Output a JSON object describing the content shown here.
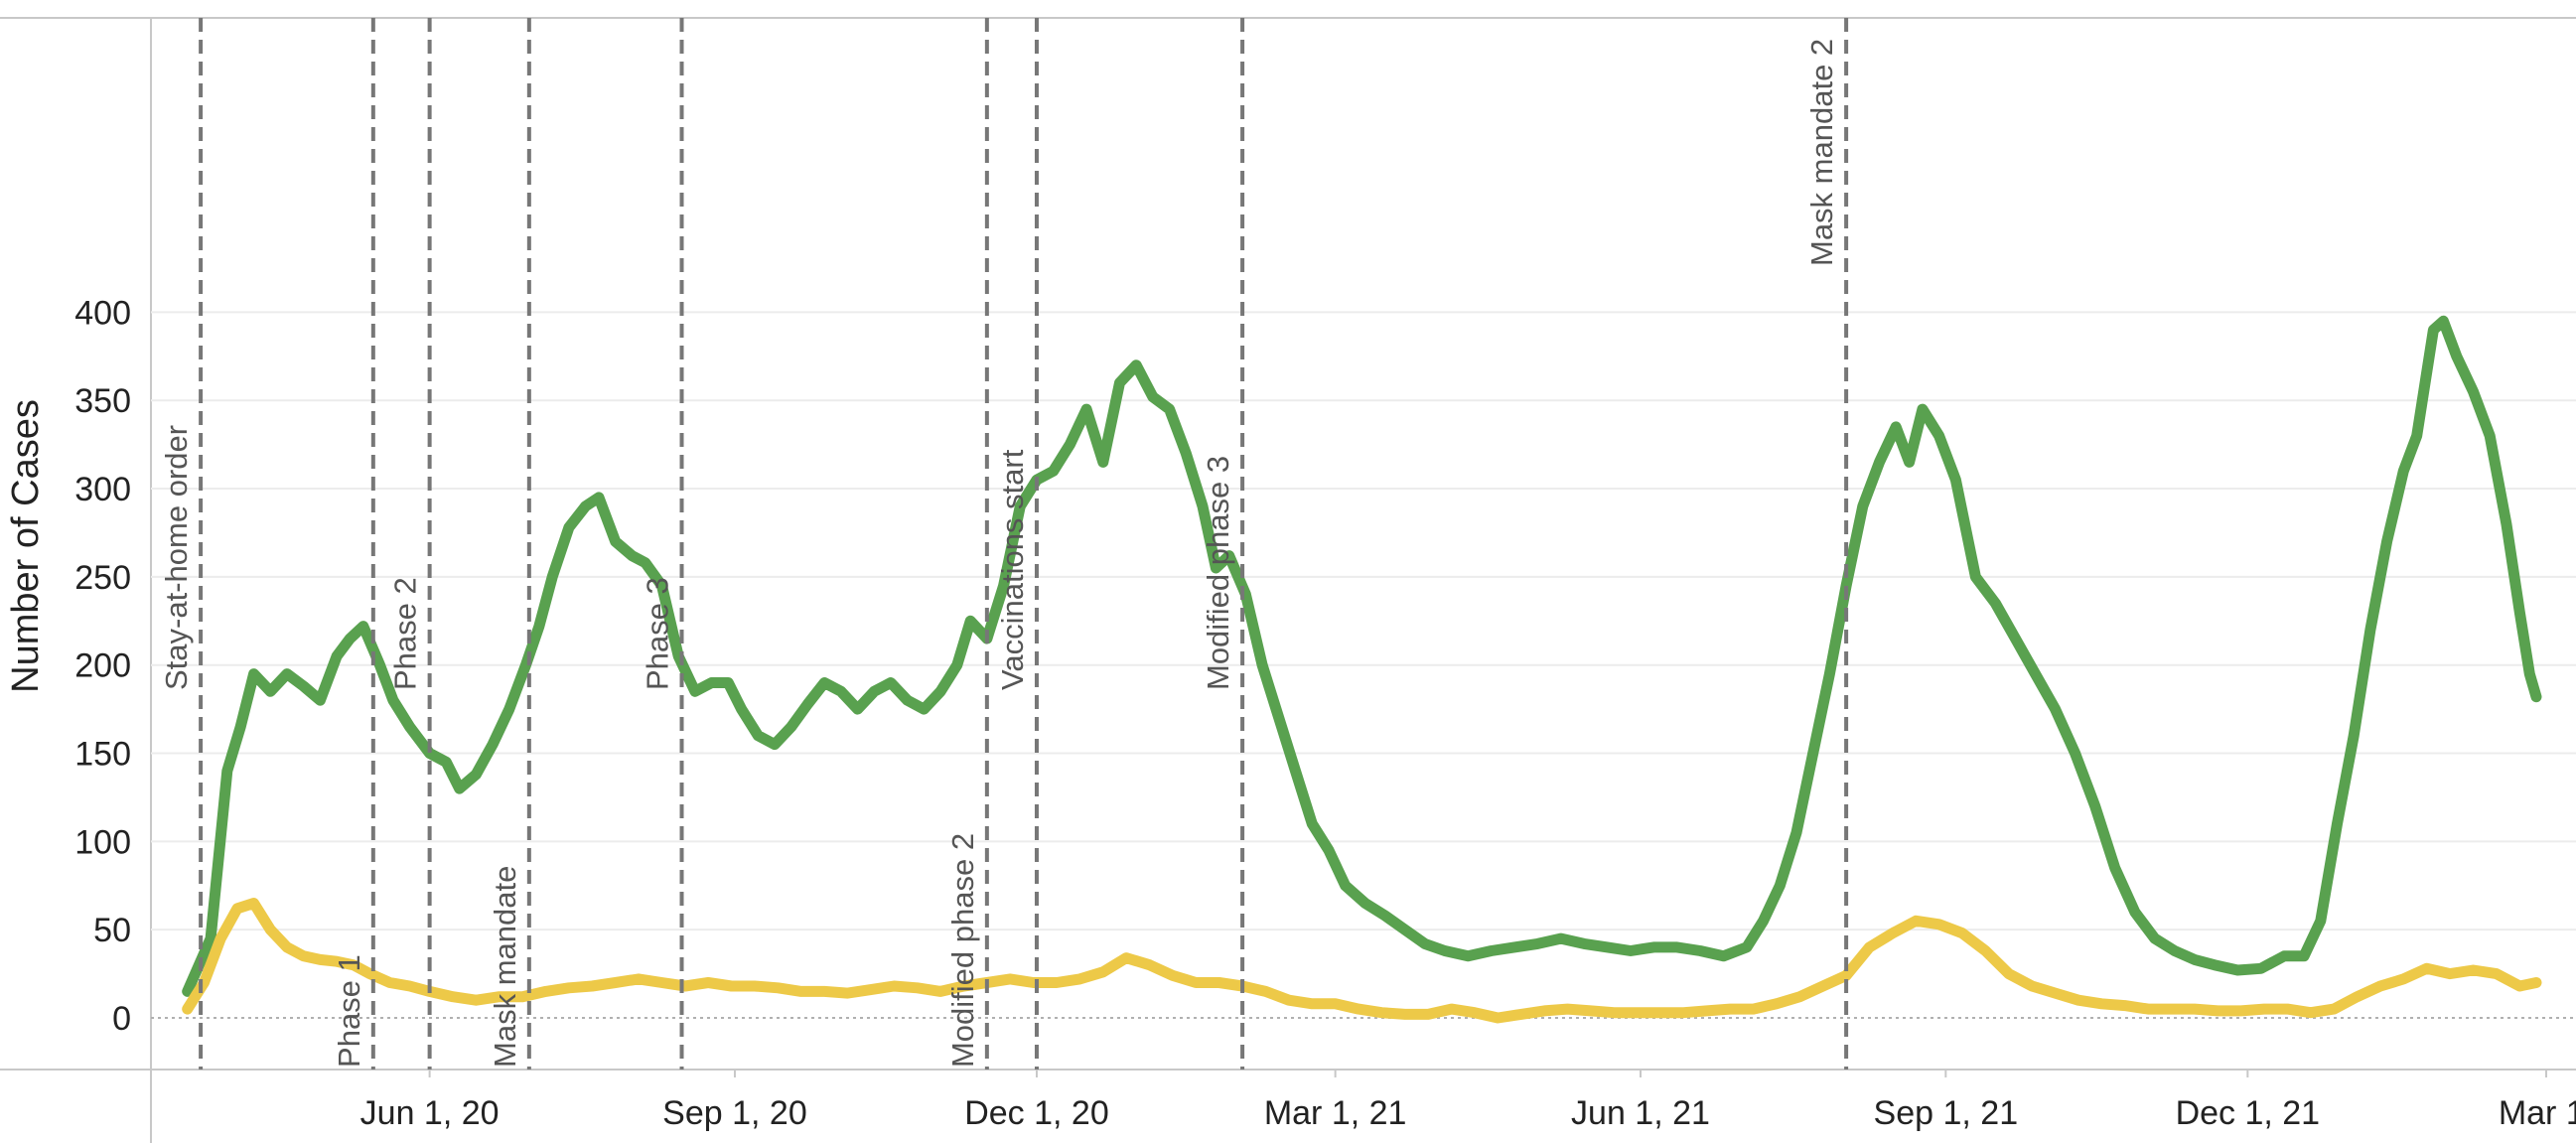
{
  "chart_data": {
    "type": "line",
    "title": "",
    "xlabel": "",
    "ylabel": "Number of Cases",
    "ylim": [
      -50,
      420
    ],
    "xlim": [
      "2020-03-09",
      "2022-03-01"
    ],
    "y_ticks": [
      0,
      50,
      100,
      150,
      200,
      250,
      300,
      350,
      400
    ],
    "x_ticks": [
      {
        "date": "2020-06-01",
        "label": "Jun 1, 20"
      },
      {
        "date": "2020-09-01",
        "label": "Sep 1, 20"
      },
      {
        "date": "2020-12-01",
        "label": "Dec 1, 20"
      },
      {
        "date": "2021-03-01",
        "label": "Mar 1, 21"
      },
      {
        "date": "2021-06-01",
        "label": "Jun 1, 21"
      },
      {
        "date": "2021-09-01",
        "label": "Sep 1, 21"
      },
      {
        "date": "2021-12-01",
        "label": "Dec 1, 21"
      },
      {
        "date": "2022-03-01",
        "label": "Mar 1,"
      }
    ],
    "grid": true,
    "zero_line": "dotted",
    "colors": {
      "series_1": "#59a14f",
      "series_2": "#edc948",
      "events": "#777777"
    },
    "events": [
      {
        "date": "2020-03-24",
        "label": "Stay-at-home order",
        "label_pos": "upper"
      },
      {
        "date": "2020-05-15",
        "label": "Phase 1",
        "label_pos": "lower"
      },
      {
        "date": "2020-06-01",
        "label": "Phase 2",
        "label_pos": "upper"
      },
      {
        "date": "2020-07-01",
        "label": "Mask mandate",
        "label_pos": "lower"
      },
      {
        "date": "2020-08-16",
        "label": "Phase 3",
        "label_pos": "upper"
      },
      {
        "date": "2020-11-16",
        "label": "Modified phase 2",
        "label_pos": "lower"
      },
      {
        "date": "2020-12-01",
        "label": "Vaccinations start",
        "label_pos": "upper"
      },
      {
        "date": "2021-02-01",
        "label": "Modified phase 3",
        "label_pos": "upper"
      },
      {
        "date": "2021-08-02",
        "label": "Mask mandate 2",
        "label_pos": "top"
      }
    ],
    "series": [
      {
        "color": "#59a14f",
        "points": [
          [
            "2020-03-20",
            15
          ],
          [
            "2020-03-27",
            45
          ],
          [
            "2020-04-01",
            140
          ],
          [
            "2020-04-05",
            165
          ],
          [
            "2020-04-09",
            195
          ],
          [
            "2020-04-14",
            185
          ],
          [
            "2020-04-19",
            195
          ],
          [
            "2020-04-24",
            188
          ],
          [
            "2020-04-29",
            180
          ],
          [
            "2020-05-04",
            205
          ],
          [
            "2020-05-08",
            215
          ],
          [
            "2020-05-12",
            222
          ],
          [
            "2020-05-17",
            200
          ],
          [
            "2020-05-21",
            180
          ],
          [
            "2020-05-26",
            165
          ],
          [
            "2020-06-01",
            150
          ],
          [
            "2020-06-06",
            145
          ],
          [
            "2020-06-10",
            130
          ],
          [
            "2020-06-15",
            138
          ],
          [
            "2020-06-20",
            155
          ],
          [
            "2020-06-25",
            175
          ],
          [
            "2020-06-30",
            200
          ],
          [
            "2020-07-04",
            222
          ],
          [
            "2020-07-08",
            250
          ],
          [
            "2020-07-13",
            278
          ],
          [
            "2020-07-18",
            290
          ],
          [
            "2020-07-22",
            295
          ],
          [
            "2020-07-27",
            270
          ],
          [
            "2020-08-01",
            262
          ],
          [
            "2020-08-05",
            258
          ],
          [
            "2020-08-10",
            245
          ],
          [
            "2020-08-15",
            205
          ],
          [
            "2020-08-20",
            185
          ],
          [
            "2020-08-25",
            190
          ],
          [
            "2020-08-30",
            190
          ],
          [
            "2020-09-03",
            175
          ],
          [
            "2020-09-08",
            160
          ],
          [
            "2020-09-13",
            155
          ],
          [
            "2020-09-18",
            165
          ],
          [
            "2020-09-23",
            178
          ],
          [
            "2020-09-28",
            190
          ],
          [
            "2020-10-03",
            185
          ],
          [
            "2020-10-08",
            175
          ],
          [
            "2020-10-13",
            185
          ],
          [
            "2020-10-18",
            190
          ],
          [
            "2020-10-23",
            180
          ],
          [
            "2020-10-28",
            175
          ],
          [
            "2020-11-02",
            185
          ],
          [
            "2020-11-07",
            200
          ],
          [
            "2020-11-11",
            225
          ],
          [
            "2020-11-16",
            215
          ],
          [
            "2020-11-21",
            245
          ],
          [
            "2020-11-26",
            290
          ],
          [
            "2020-12-01",
            305
          ],
          [
            "2020-12-06",
            310
          ],
          [
            "2020-12-11",
            325
          ],
          [
            "2020-12-16",
            345
          ],
          [
            "2020-12-21",
            315
          ],
          [
            "2020-12-26",
            360
          ],
          [
            "2020-12-31",
            370
          ],
          [
            "2021-01-05",
            352
          ],
          [
            "2021-01-10",
            345
          ],
          [
            "2021-01-15",
            320
          ],
          [
            "2021-01-20",
            290
          ],
          [
            "2021-01-24",
            255
          ],
          [
            "2021-01-28",
            262
          ],
          [
            "2021-02-02",
            240
          ],
          [
            "2021-02-07",
            200
          ],
          [
            "2021-02-12",
            170
          ],
          [
            "2021-02-17",
            140
          ],
          [
            "2021-02-22",
            110
          ],
          [
            "2021-02-27",
            95
          ],
          [
            "2021-03-04",
            75
          ],
          [
            "2021-03-10",
            65
          ],
          [
            "2021-03-16",
            58
          ],
          [
            "2021-03-22",
            50
          ],
          [
            "2021-03-28",
            42
          ],
          [
            "2021-04-03",
            38
          ],
          [
            "2021-04-10",
            35
          ],
          [
            "2021-04-17",
            38
          ],
          [
            "2021-04-24",
            40
          ],
          [
            "2021-05-01",
            42
          ],
          [
            "2021-05-08",
            45
          ],
          [
            "2021-05-15",
            42
          ],
          [
            "2021-05-22",
            40
          ],
          [
            "2021-05-29",
            38
          ],
          [
            "2021-06-05",
            40
          ],
          [
            "2021-06-12",
            40
          ],
          [
            "2021-06-19",
            38
          ],
          [
            "2021-06-26",
            35
          ],
          [
            "2021-07-03",
            40
          ],
          [
            "2021-07-08",
            55
          ],
          [
            "2021-07-13",
            75
          ],
          [
            "2021-07-18",
            105
          ],
          [
            "2021-07-23",
            150
          ],
          [
            "2021-07-28",
            195
          ],
          [
            "2021-08-02",
            245
          ],
          [
            "2021-08-07",
            290
          ],
          [
            "2021-08-12",
            315
          ],
          [
            "2021-08-17",
            335
          ],
          [
            "2021-08-21",
            315
          ],
          [
            "2021-08-25",
            345
          ],
          [
            "2021-08-30",
            330
          ],
          [
            "2021-09-04",
            305
          ],
          [
            "2021-09-10",
            250
          ],
          [
            "2021-09-16",
            235
          ],
          [
            "2021-09-22",
            215
          ],
          [
            "2021-09-28",
            195
          ],
          [
            "2021-10-04",
            175
          ],
          [
            "2021-10-10",
            150
          ],
          [
            "2021-10-16",
            120
          ],
          [
            "2021-10-22",
            85
          ],
          [
            "2021-10-28",
            60
          ],
          [
            "2021-11-03",
            45
          ],
          [
            "2021-11-09",
            38
          ],
          [
            "2021-11-15",
            33
          ],
          [
            "2021-11-21",
            30
          ],
          [
            "2021-11-28",
            27
          ],
          [
            "2021-12-05",
            28
          ],
          [
            "2021-12-12",
            35
          ],
          [
            "2021-12-18",
            35
          ],
          [
            "2021-12-23",
            55
          ],
          [
            "2021-12-28",
            110
          ],
          [
            "2022-01-02",
            160
          ],
          [
            "2022-01-07",
            220
          ],
          [
            "2022-01-12",
            270
          ],
          [
            "2022-01-17",
            310
          ],
          [
            "2022-01-21",
            330
          ],
          [
            "2022-01-26",
            390
          ],
          [
            "2022-01-29",
            395
          ],
          [
            "2022-02-02",
            375
          ],
          [
            "2022-02-07",
            355
          ],
          [
            "2022-02-12",
            330
          ],
          [
            "2022-02-17",
            280
          ],
          [
            "2022-02-21",
            230
          ],
          [
            "2022-02-24",
            195
          ],
          [
            "2022-02-26",
            182
          ]
        ]
      },
      {
        "color": "#edc948",
        "points": [
          [
            "2020-03-20",
            5
          ],
          [
            "2020-03-25",
            20
          ],
          [
            "2020-03-30",
            45
          ],
          [
            "2020-04-04",
            62
          ],
          [
            "2020-04-09",
            65
          ],
          [
            "2020-04-14",
            50
          ],
          [
            "2020-04-19",
            40
          ],
          [
            "2020-04-24",
            35
          ],
          [
            "2020-04-29",
            33
          ],
          [
            "2020-05-04",
            32
          ],
          [
            "2020-05-09",
            30
          ],
          [
            "2020-05-14",
            25
          ],
          [
            "2020-05-20",
            20
          ],
          [
            "2020-05-26",
            18
          ],
          [
            "2020-06-01",
            15
          ],
          [
            "2020-06-08",
            12
          ],
          [
            "2020-06-15",
            10
          ],
          [
            "2020-06-22",
            12
          ],
          [
            "2020-06-29",
            12
          ],
          [
            "2020-07-06",
            15
          ],
          [
            "2020-07-13",
            17
          ],
          [
            "2020-07-20",
            18
          ],
          [
            "2020-07-27",
            20
          ],
          [
            "2020-08-03",
            22
          ],
          [
            "2020-08-10",
            20
          ],
          [
            "2020-08-17",
            18
          ],
          [
            "2020-08-24",
            20
          ],
          [
            "2020-08-31",
            18
          ],
          [
            "2020-09-07",
            18
          ],
          [
            "2020-09-14",
            17
          ],
          [
            "2020-09-21",
            15
          ],
          [
            "2020-09-28",
            15
          ],
          [
            "2020-10-05",
            14
          ],
          [
            "2020-10-12",
            16
          ],
          [
            "2020-10-19",
            18
          ],
          [
            "2020-10-26",
            17
          ],
          [
            "2020-11-02",
            15
          ],
          [
            "2020-11-09",
            18
          ],
          [
            "2020-11-16",
            20
          ],
          [
            "2020-11-23",
            22
          ],
          [
            "2020-11-30",
            20
          ],
          [
            "2020-12-07",
            20
          ],
          [
            "2020-12-14",
            22
          ],
          [
            "2020-12-21",
            26
          ],
          [
            "2020-12-28",
            34
          ],
          [
            "2021-01-04",
            30
          ],
          [
            "2021-01-11",
            24
          ],
          [
            "2021-01-18",
            20
          ],
          [
            "2021-01-25",
            20
          ],
          [
            "2021-02-01",
            18
          ],
          [
            "2021-02-08",
            15
          ],
          [
            "2021-02-15",
            10
          ],
          [
            "2021-02-22",
            8
          ],
          [
            "2021-03-01",
            8
          ],
          [
            "2021-03-08",
            5
          ],
          [
            "2021-03-15",
            3
          ],
          [
            "2021-03-22",
            2
          ],
          [
            "2021-03-29",
            2
          ],
          [
            "2021-04-05",
            5
          ],
          [
            "2021-04-12",
            3
          ],
          [
            "2021-04-19",
            0
          ],
          [
            "2021-04-26",
            2
          ],
          [
            "2021-05-03",
            4
          ],
          [
            "2021-05-10",
            5
          ],
          [
            "2021-05-17",
            4
          ],
          [
            "2021-05-24",
            3
          ],
          [
            "2021-05-31",
            3
          ],
          [
            "2021-06-07",
            3
          ],
          [
            "2021-06-14",
            3
          ],
          [
            "2021-06-21",
            4
          ],
          [
            "2021-06-28",
            5
          ],
          [
            "2021-07-05",
            5
          ],
          [
            "2021-07-12",
            8
          ],
          [
            "2021-07-19",
            12
          ],
          [
            "2021-07-26",
            18
          ],
          [
            "2021-08-02",
            24
          ],
          [
            "2021-08-09",
            40
          ],
          [
            "2021-08-16",
            48
          ],
          [
            "2021-08-23",
            55
          ],
          [
            "2021-08-30",
            53
          ],
          [
            "2021-09-06",
            48
          ],
          [
            "2021-09-13",
            38
          ],
          [
            "2021-09-20",
            25
          ],
          [
            "2021-09-27",
            18
          ],
          [
            "2021-10-04",
            14
          ],
          [
            "2021-10-11",
            10
          ],
          [
            "2021-10-18",
            8
          ],
          [
            "2021-10-25",
            7
          ],
          [
            "2021-11-01",
            5
          ],
          [
            "2021-11-08",
            5
          ],
          [
            "2021-11-15",
            5
          ],
          [
            "2021-11-22",
            4
          ],
          [
            "2021-11-29",
            4
          ],
          [
            "2021-12-06",
            5
          ],
          [
            "2021-12-13",
            5
          ],
          [
            "2021-12-20",
            3
          ],
          [
            "2021-12-27",
            5
          ],
          [
            "2022-01-03",
            12
          ],
          [
            "2022-01-10",
            18
          ],
          [
            "2022-01-17",
            22
          ],
          [
            "2022-01-24",
            28
          ],
          [
            "2022-01-31",
            25
          ],
          [
            "2022-02-07",
            27
          ],
          [
            "2022-02-14",
            25
          ],
          [
            "2022-02-21",
            18
          ],
          [
            "2022-02-26",
            20
          ]
        ]
      }
    ]
  }
}
